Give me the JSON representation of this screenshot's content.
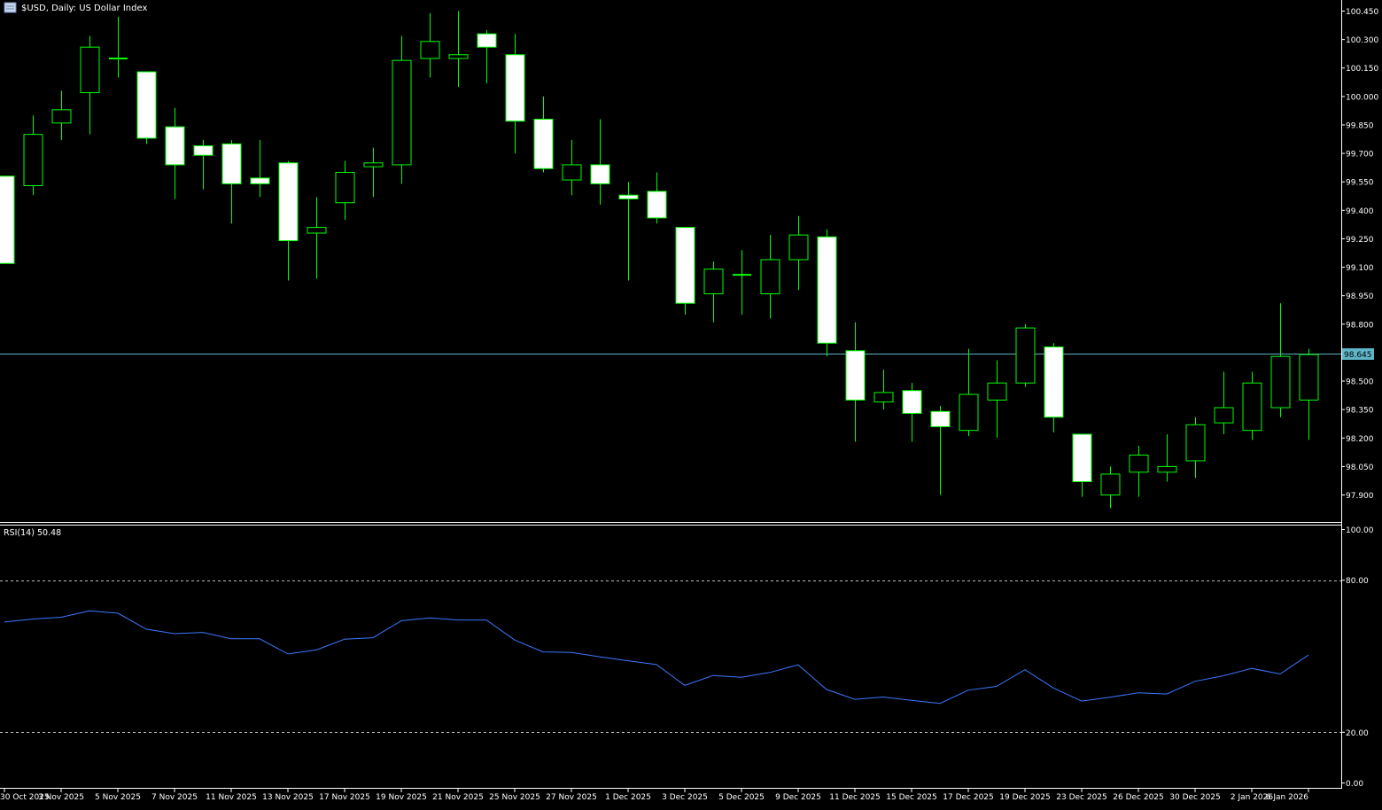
{
  "header": {
    "symbol_label": "$USD, Daily:  US Dollar Index"
  },
  "colors": {
    "background": "#000000",
    "grid_line": "#ffffff",
    "candle_outline": "#00ff00",
    "candle_bull_fill": "#000000",
    "candle_bear_fill": "#ffffff",
    "current_price_line": "#5fb5c8",
    "rsi_line": "#3c78ff",
    "text": "#ffffff"
  },
  "chart_data": [
    {
      "type": "candlestick",
      "title": "$USD, Daily:  US Dollar Index",
      "ylim": [
        97.75,
        100.52
      ],
      "yticks": [
        "100.450",
        "100.300",
        "100.150",
        "100.000",
        "99.850",
        "99.700",
        "99.550",
        "99.400",
        "99.250",
        "99.100",
        "98.950",
        "98.800",
        "98.500",
        "98.350",
        "98.200",
        "98.050",
        "97.900"
      ],
      "current_price": 98.645,
      "current_price_label": "98.645",
      "x_labels": [
        "30 Oct 2025",
        "3 Nov 2025",
        "5 Nov 2025",
        "7 Nov 2025",
        "11 Nov 2025",
        "13 Nov 2025",
        "17 Nov 2025",
        "19 Nov 2025",
        "21 Nov 2025",
        "25 Nov 2025",
        "27 Nov 2025",
        "1 Dec 2025",
        "3 Dec 2025",
        "5 Dec 2025",
        "9 Dec 2025",
        "11 Dec 2025",
        "15 Dec 2025",
        "17 Dec 2025",
        "19 Dec 2025",
        "23 Dec 2025",
        "26 Dec 2025",
        "30 Dec 2025",
        "2 Jan 2026",
        "6 Jan 2026"
      ],
      "candles": [
        {
          "o": 99.58,
          "h": 99.58,
          "l": 99.12,
          "c": 99.12
        },
        {
          "o": 99.53,
          "h": 99.9,
          "l": 99.48,
          "c": 99.8
        },
        {
          "o": 99.86,
          "h": 100.03,
          "l": 99.77,
          "c": 99.93
        },
        {
          "o": 100.02,
          "h": 100.32,
          "l": 99.8,
          "c": 100.26
        },
        {
          "o": 100.2,
          "h": 100.42,
          "l": 100.1,
          "c": 100.2
        },
        {
          "o": 100.13,
          "h": 100.13,
          "l": 99.75,
          "c": 99.78
        },
        {
          "o": 99.84,
          "h": 99.94,
          "l": 99.46,
          "c": 99.64
        },
        {
          "o": 99.74,
          "h": 99.77,
          "l": 99.51,
          "c": 99.69
        },
        {
          "o": 99.75,
          "h": 99.77,
          "l": 99.33,
          "c": 99.54
        },
        {
          "o": 99.57,
          "h": 99.77,
          "l": 99.47,
          "c": 99.54
        },
        {
          "o": 99.65,
          "h": 99.66,
          "l": 99.03,
          "c": 99.24
        },
        {
          "o": 99.28,
          "h": 99.47,
          "l": 99.04,
          "c": 99.31
        },
        {
          "o": 99.44,
          "h": 99.66,
          "l": 99.35,
          "c": 99.6
        },
        {
          "o": 99.63,
          "h": 99.73,
          "l": 99.47,
          "c": 99.65
        },
        {
          "o": 99.64,
          "h": 100.32,
          "l": 99.54,
          "c": 100.19
        },
        {
          "o": 100.2,
          "h": 100.44,
          "l": 100.1,
          "c": 100.29
        },
        {
          "o": 100.2,
          "h": 100.45,
          "l": 100.05,
          "c": 100.22
        },
        {
          "o": 100.33,
          "h": 100.35,
          "l": 100.07,
          "c": 100.26
        },
        {
          "o": 100.22,
          "h": 100.33,
          "l": 99.7,
          "c": 99.87
        },
        {
          "o": 99.88,
          "h": 100.0,
          "l": 99.6,
          "c": 99.62
        },
        {
          "o": 99.56,
          "h": 99.77,
          "l": 99.48,
          "c": 99.64
        },
        {
          "o": 99.64,
          "h": 99.88,
          "l": 99.43,
          "c": 99.54
        },
        {
          "o": 99.48,
          "h": 99.55,
          "l": 99.03,
          "c": 99.46
        },
        {
          "o": 99.5,
          "h": 99.6,
          "l": 99.33,
          "c": 99.36
        },
        {
          "o": 99.31,
          "h": 99.31,
          "l": 98.85,
          "c": 98.91
        },
        {
          "o": 98.96,
          "h": 99.13,
          "l": 98.81,
          "c": 99.09
        },
        {
          "o": 99.06,
          "h": 99.19,
          "l": 98.85,
          "c": 99.06
        },
        {
          "o": 98.96,
          "h": 99.27,
          "l": 98.83,
          "c": 99.14
        },
        {
          "o": 99.14,
          "h": 99.37,
          "l": 98.98,
          "c": 99.27
        },
        {
          "o": 99.26,
          "h": 99.3,
          "l": 98.63,
          "c": 98.7
        },
        {
          "o": 98.66,
          "h": 98.81,
          "l": 98.18,
          "c": 98.4
        },
        {
          "o": 98.39,
          "h": 98.56,
          "l": 98.35,
          "c": 98.44
        },
        {
          "o": 98.45,
          "h": 98.49,
          "l": 98.18,
          "c": 98.33
        },
        {
          "o": 98.34,
          "h": 98.37,
          "l": 97.9,
          "c": 98.26
        },
        {
          "o": 98.24,
          "h": 98.67,
          "l": 98.21,
          "c": 98.43
        },
        {
          "o": 98.4,
          "h": 98.61,
          "l": 98.2,
          "c": 98.49
        },
        {
          "o": 98.49,
          "h": 98.8,
          "l": 98.47,
          "c": 98.78
        },
        {
          "o": 98.68,
          "h": 98.7,
          "l": 98.23,
          "c": 98.31
        },
        {
          "o": 98.22,
          "h": 98.22,
          "l": 97.89,
          "c": 97.97
        },
        {
          "o": 97.9,
          "h": 98.05,
          "l": 97.83,
          "c": 98.01
        },
        {
          "o": 98.02,
          "h": 98.16,
          "l": 97.89,
          "c": 98.11
        },
        {
          "o": 98.02,
          "h": 98.22,
          "l": 97.97,
          "c": 98.05
        },
        {
          "o": 98.08,
          "h": 98.31,
          "l": 97.99,
          "c": 98.27
        },
        {
          "o": 98.28,
          "h": 98.55,
          "l": 98.22,
          "c": 98.36
        },
        {
          "o": 98.24,
          "h": 98.55,
          "l": 98.19,
          "c": 98.49
        },
        {
          "o": 98.36,
          "h": 98.91,
          "l": 98.31,
          "c": 98.63
        },
        {
          "o": 98.4,
          "h": 98.67,
          "l": 98.19,
          "c": 98.64
        }
      ]
    },
    {
      "type": "line",
      "title": "RSI(14) 50.48",
      "ylim": [
        0,
        100
      ],
      "yticks": [
        "100.00",
        "80.00",
        "20.00",
        "0.00"
      ],
      "levels": [
        80,
        20
      ],
      "values": [
        63.5,
        64.7,
        65.4,
        67.9,
        67.0,
        60.7,
        58.9,
        59.4,
        56.9,
        56.9,
        50.9,
        52.5,
        56.7,
        57.3,
        64.0,
        65.1,
        64.3,
        64.3,
        56.4,
        51.7,
        51.5,
        49.8,
        48.2,
        46.7,
        38.5,
        42.4,
        41.7,
        43.6,
        46.6,
        36.9,
        33.0,
        33.9,
        32.6,
        31.4,
        36.6,
        38.1,
        44.7,
        37.5,
        32.3,
        33.8,
        35.6,
        35.1,
        40.1,
        42.3,
        45.2,
        43.0,
        50.48
      ]
    }
  ]
}
